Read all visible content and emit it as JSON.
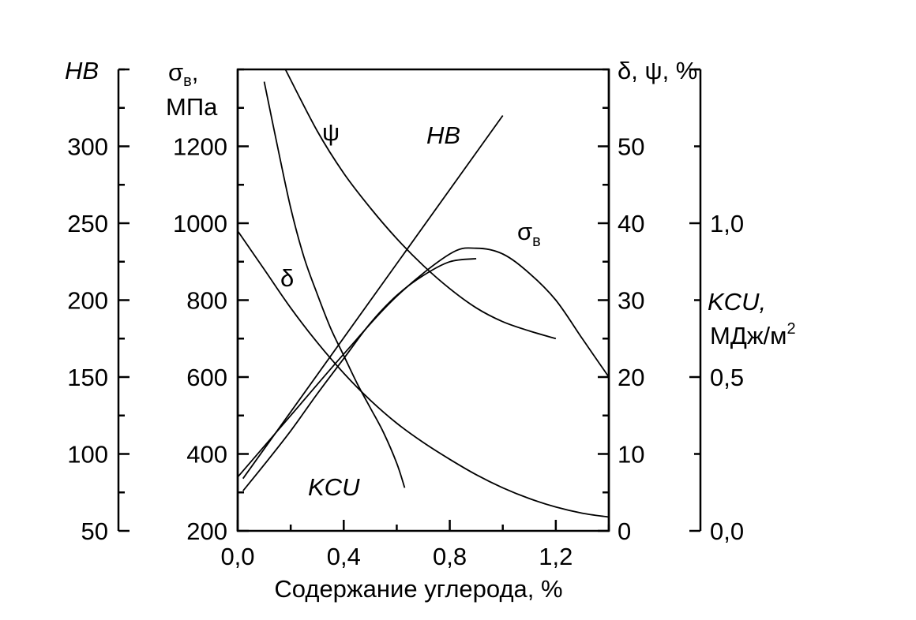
{
  "chart_data": {
    "type": "line",
    "xlabel": "Содержание углерода, %",
    "xlim": [
      0.0,
      1.4
    ],
    "x_ticks": [
      "0,0",
      "0,4",
      "0,8",
      "1,2"
    ],
    "axes": {
      "hb": {
        "label": "HB",
        "ylim": [
          50,
          350
        ],
        "ticks": [
          "300",
          "250",
          "200",
          "150",
          "100",
          "50"
        ]
      },
      "sigma": {
        "label": "σ",
        "label_sub": "в",
        "label_suffix": ",",
        "unit": "МПа",
        "ylim": [
          200,
          1400
        ],
        "ticks": [
          "1200",
          "1000",
          "800",
          "600",
          "400",
          "200"
        ]
      },
      "delta_psi": {
        "label": "δ, ψ, %",
        "ylim": [
          0,
          60
        ],
        "ticks": [
          "50",
          "40",
          "30",
          "20",
          "10",
          "0"
        ]
      },
      "kcu": {
        "label": "KCU,",
        "unit": "МДж/м",
        "unit_sup": "2",
        "ylim": [
          0.0,
          1.5
        ],
        "ticks": [
          "1,0",
          "0,5",
          "0,0"
        ]
      }
    },
    "series": [
      {
        "name": "ψ",
        "axis": "delta_psi",
        "x": [
          0.18,
          0.3,
          0.4,
          0.5,
          0.6,
          0.7,
          0.8,
          0.9,
          1.0,
          1.1,
          1.2
        ],
        "y": [
          60,
          52,
          46.5,
          42,
          38,
          34.5,
          31.5,
          29,
          27.2,
          26,
          25
        ]
      },
      {
        "name": "HB",
        "axis": "hb",
        "x": [
          0.02,
          1.0
        ],
        "y": [
          84,
          320
        ]
      },
      {
        "name": "",
        "axis": "hb",
        "x": [
          0.02,
          0.1,
          0.2,
          0.3,
          0.4,
          0.5,
          0.6,
          0.7,
          0.8,
          0.9
        ],
        "y": [
          76,
          93,
          115,
          139,
          162,
          185,
          203,
          216,
          225,
          227
        ]
      },
      {
        "name": "σ",
        "name_sub": "в",
        "axis": "sigma",
        "x": [
          0.0,
          0.2,
          0.4,
          0.6,
          0.8,
          0.9,
          1.0,
          1.1,
          1.2,
          1.3,
          1.4
        ],
        "y": [
          340,
          500,
          660,
          810,
          920,
          935,
          920,
          870,
          800,
          700,
          600
        ]
      },
      {
        "name": "δ",
        "axis": "delta_psi",
        "x": [
          0.0,
          0.1,
          0.2,
          0.3,
          0.4,
          0.5,
          0.6,
          0.7,
          0.8,
          0.9,
          1.0,
          1.1,
          1.2,
          1.3,
          1.4
        ],
        "y": [
          39,
          34,
          29,
          24.5,
          20.5,
          17,
          14,
          11.5,
          9.3,
          7.3,
          5.6,
          4.2,
          3.1,
          2.3,
          1.8
        ]
      },
      {
        "name": "KCU",
        "axis": "kcu",
        "x": [
          0.1,
          0.15,
          0.2,
          0.25,
          0.3,
          0.35,
          0.4,
          0.45,
          0.5,
          0.55,
          0.6,
          0.63
        ],
        "y": [
          1.46,
          1.25,
          1.05,
          0.89,
          0.77,
          0.66,
          0.57,
          0.48,
          0.4,
          0.32,
          0.22,
          0.14
        ]
      }
    ]
  }
}
